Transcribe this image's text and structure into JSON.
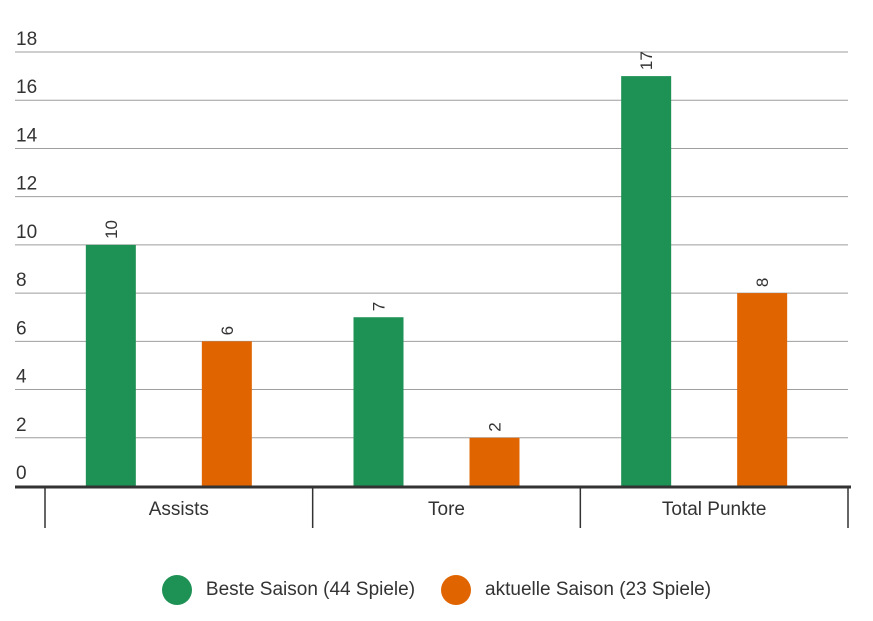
{
  "chart_data": {
    "type": "bar",
    "categories": [
      "Assists",
      "Tore",
      "Total Punkte"
    ],
    "series": [
      {
        "name": "Beste Saison (44 Spiele)",
        "values": [
          10,
          7,
          17
        ],
        "color": "#1e9155"
      },
      {
        "name": "aktuelle Saison (23 Spiele)",
        "values": [
          6,
          2,
          8
        ],
        "color": "#e06400"
      }
    ],
    "yticks": [
      0,
      2,
      4,
      6,
      8,
      10,
      12,
      14,
      16,
      18
    ],
    "ylim": [
      0,
      18
    ],
    "grid": true,
    "legend_position": "bottom",
    "title": "",
    "xlabel": "",
    "ylabel": ""
  }
}
